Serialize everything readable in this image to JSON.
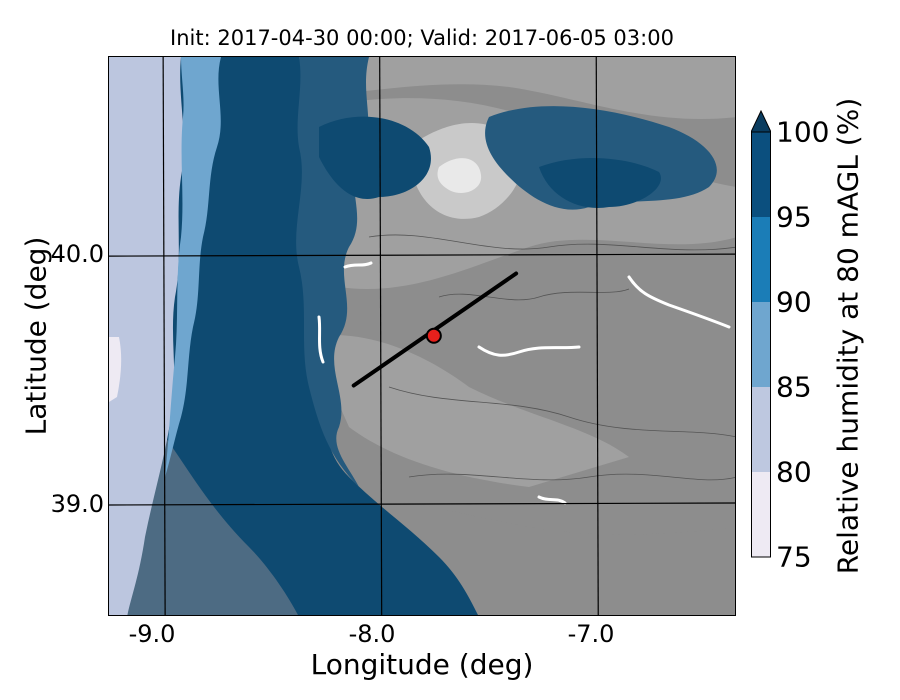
{
  "title": "Init: 2017-04-30 00:00; Valid: 2017-06-05 03:00",
  "x_axis": {
    "label": "Longitude (deg)",
    "ticks": [
      "-9.0",
      "-8.0",
      "-7.0"
    ]
  },
  "y_axis": {
    "label": "Latitude (deg)",
    "ticks": [
      "40.0",
      "39.0"
    ]
  },
  "colorbar": {
    "label": "Relative humidity at 80 mAGL (%)",
    "ticks": [
      "75",
      "80",
      "85",
      "90",
      "95",
      "100"
    ],
    "levels": [
      {
        "from": 75,
        "to": 80,
        "color": "#eeeaf3"
      },
      {
        "from": 80,
        "to": 85,
        "color": "#bec8e0"
      },
      {
        "from": 85,
        "to": 90,
        "color": "#6fa6cf"
      },
      {
        "from": 90,
        "to": 95,
        "color": "#1b7db7"
      },
      {
        "from": 95,
        "to": 100,
        "color": "#0b4f7e"
      }
    ],
    "extend_color": "#0a3c5f"
  },
  "map": {
    "lon_range": [
      -9.25,
      -6.35
    ],
    "lat_range": [
      38.55,
      40.8
    ],
    "station": {
      "lon": -7.75,
      "lat": 39.68,
      "color": "#e8201c"
    },
    "transect": {
      "start": {
        "lon": -8.12,
        "lat": 39.48
      },
      "end": {
        "lon": -7.37,
        "lat": 39.93
      }
    },
    "colors": {
      "land_dry": "#8d8d8d",
      "land_mid": "#a0a0a0",
      "land_light": "#c9c9c9",
      "land_lightest": "#e9e9e9",
      "humid_dark": "#0e4a71",
      "humid_mid": "#255a7e",
      "ocean_light": "#bcc6df",
      "ocean_edge": "#6fa6cf",
      "humid_grey": "#4d6b83"
    }
  }
}
